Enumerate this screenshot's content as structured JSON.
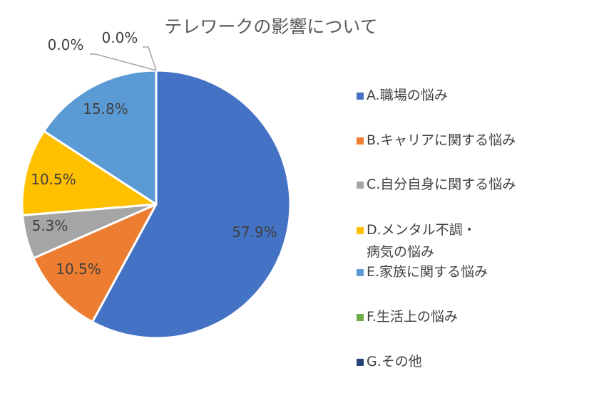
{
  "chart_data": {
    "type": "pie",
    "title": "テレワークの影響について",
    "categories": [
      "A.職場の悩み",
      "B.キャリアに関する悩み",
      "C.自分自身に関する悩み",
      "D.メンタル不調・病気の悩み",
      "E.家族に関する悩み",
      "F.生活上の悩み",
      "G.その他"
    ],
    "values": [
      57.9,
      10.5,
      5.3,
      10.5,
      15.8,
      0.0,
      0.0
    ],
    "data_labels": [
      "57.9%",
      "10.5%",
      "5.3%",
      "10.5%",
      "15.8%",
      "0.0%",
      "0.0%"
    ],
    "colors": [
      "#4472C4",
      "#ED7D31",
      "#A5A5A5",
      "#FFC000",
      "#5B9BD5",
      "#70AD47",
      "#264478"
    ],
    "legend_position": "right"
  }
}
